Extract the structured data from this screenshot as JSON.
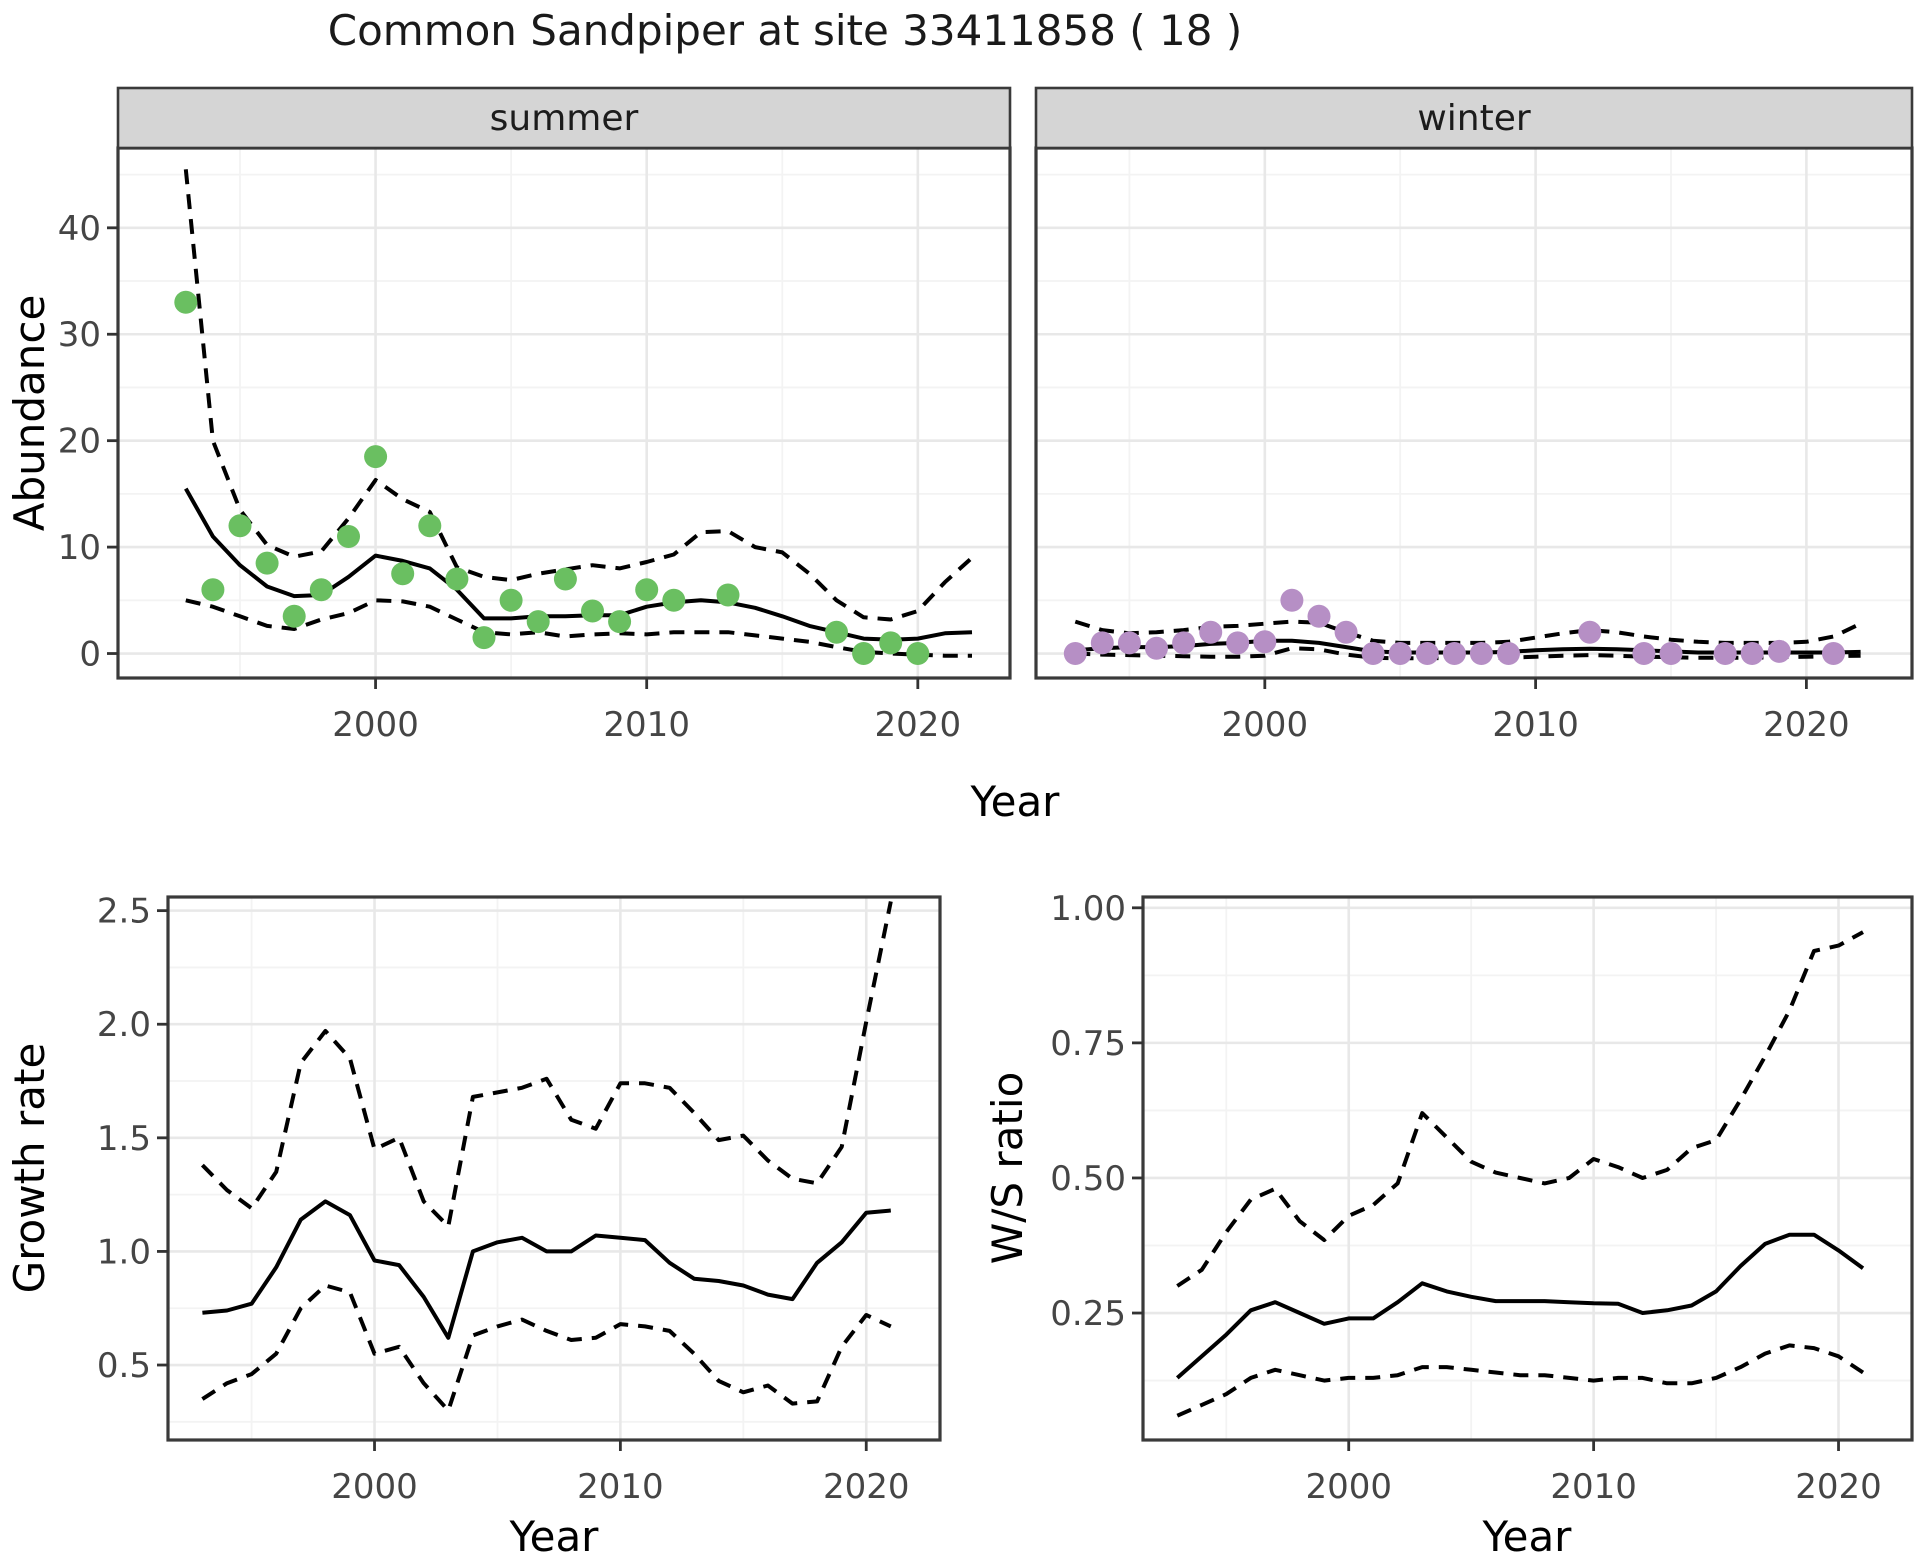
{
  "title": "Common Sandpiper at site 33411858 ( 18 )",
  "colors": {
    "background": "#ffffff",
    "panel_bg": "#ffffff",
    "grid_major": "#e8e8e8",
    "grid_minor": "#f3f3f3",
    "panel_border": "#3a3a3a",
    "strip_fill": "#d5d5d5",
    "tick_mark": "#333333",
    "line": "#000000",
    "summer_point": "#6abf61",
    "winter_point": "#b68fc5"
  },
  "chart_data": [
    {
      "id": "abundance-summer",
      "type": "line",
      "facet_label": "summer",
      "xlabel": "Year",
      "ylabel": "Abundance",
      "xlim": [
        1990.5,
        2023.4
      ],
      "ylim": [
        -2.3,
        47.5
      ],
      "x_ticks": {
        "values": [
          2000,
          2010,
          2020
        ],
        "labels": [
          "2000",
          "2010",
          "2020"
        ],
        "minor": [
          1995,
          2005,
          2015
        ]
      },
      "y_ticks": {
        "values": [
          0,
          10,
          20,
          30,
          40
        ],
        "labels": [
          "0",
          "10",
          "20",
          "30",
          "40"
        ],
        "minor": [
          5,
          15,
          25,
          35,
          45
        ]
      },
      "x": [
        1993,
        1994,
        1995,
        1996,
        1997,
        1998,
        1999,
        2000,
        2001,
        2002,
        2003,
        2004,
        2005,
        2006,
        2007,
        2008,
        2009,
        2010,
        2011,
        2012,
        2013,
        2014,
        2015,
        2016,
        2017,
        2018,
        2019,
        2020,
        2021,
        2022
      ],
      "series": [
        {
          "name": "mean",
          "style": "solid",
          "values": [
            15.5,
            11.0,
            8.3,
            6.3,
            5.4,
            5.5,
            7.2,
            9.2,
            8.7,
            8.0,
            6.0,
            3.3,
            3.3,
            3.5,
            3.5,
            3.6,
            3.6,
            4.4,
            4.8,
            5.0,
            4.8,
            4.3,
            3.5,
            2.6,
            2.0,
            1.4,
            1.3,
            1.4,
            1.9,
            2.0
          ]
        },
        {
          "name": "upper-ci",
          "style": "dashed",
          "values": [
            45.5,
            20.0,
            13.5,
            10.2,
            9.1,
            9.6,
            12.7,
            16.3,
            14.5,
            13.3,
            8.1,
            7.2,
            6.9,
            7.5,
            7.9,
            8.3,
            8.0,
            8.6,
            9.3,
            11.4,
            11.5,
            10.0,
            9.5,
            7.5,
            5.0,
            3.4,
            3.2,
            4.0,
            6.7,
            9.0
          ]
        },
        {
          "name": "lower-ci",
          "style": "dashed",
          "values": [
            5.0,
            4.4,
            3.5,
            2.6,
            2.3,
            3.2,
            3.8,
            5.0,
            4.9,
            4.4,
            3.2,
            2.0,
            1.8,
            2.0,
            1.6,
            1.8,
            1.9,
            1.8,
            2.0,
            2.0,
            2.0,
            1.7,
            1.4,
            1.1,
            0.6,
            0.15,
            0.0,
            -0.1,
            -0.2,
            -0.2
          ]
        }
      ],
      "points": {
        "color": "#6abf61",
        "data": [
          [
            1993,
            33
          ],
          [
            1994,
            6
          ],
          [
            1995,
            12
          ],
          [
            1996,
            8.5
          ],
          [
            1997,
            3.5
          ],
          [
            1998,
            6
          ],
          [
            1999,
            11
          ],
          [
            2000,
            18.5
          ],
          [
            2001,
            7.5
          ],
          [
            2002,
            12
          ],
          [
            2003,
            7
          ],
          [
            2004,
            1.5
          ],
          [
            2005,
            5
          ],
          [
            2006,
            3
          ],
          [
            2007,
            7
          ],
          [
            2008,
            4
          ],
          [
            2009,
            3
          ],
          [
            2010,
            6
          ],
          [
            2011,
            5
          ],
          [
            2013,
            5.5
          ],
          [
            2017,
            2
          ],
          [
            2018,
            0
          ],
          [
            2019,
            1
          ],
          [
            2020,
            0
          ]
        ]
      }
    },
    {
      "id": "abundance-winter",
      "type": "line",
      "facet_label": "winter",
      "xlabel": "Year",
      "ylabel": "Abundance",
      "xlim": [
        1991.55,
        2023.9
      ],
      "ylim": [
        -2.3,
        47.5
      ],
      "x_ticks": {
        "values": [
          2000,
          2010,
          2020
        ],
        "labels": [
          "2000",
          "2010",
          "2020"
        ],
        "minor": [
          1995,
          2005,
          2015
        ]
      },
      "y_ticks": {
        "values": [
          0,
          10,
          20,
          30,
          40
        ],
        "labels": [
          "0",
          "10",
          "20",
          "30",
          "40"
        ],
        "minor": [
          5,
          15,
          25,
          35,
          45
        ]
      },
      "x": [
        1993,
        1994,
        1995,
        1996,
        1997,
        1998,
        1999,
        2000,
        2001,
        2002,
        2003,
        2004,
        2005,
        2006,
        2007,
        2008,
        2009,
        2010,
        2011,
        2012,
        2013,
        2014,
        2015,
        2016,
        2017,
        2018,
        2019,
        2020,
        2021,
        2022
      ],
      "series": [
        {
          "name": "mean",
          "style": "solid",
          "values": [
            0.3,
            0.5,
            0.6,
            0.6,
            0.7,
            0.9,
            1.0,
            1.2,
            1.2,
            1.0,
            0.6,
            0.2,
            0.1,
            0.1,
            0.1,
            0.1,
            0.15,
            0.3,
            0.4,
            0.45,
            0.4,
            0.3,
            0.2,
            0.1,
            0.1,
            0.1,
            0.1,
            0.1,
            0.1,
            0.15
          ]
        },
        {
          "name": "upper-ci",
          "style": "dashed",
          "values": [
            3.0,
            2.2,
            1.9,
            2.0,
            2.2,
            2.5,
            2.6,
            2.8,
            3.0,
            2.9,
            2.0,
            1.2,
            1.0,
            1.0,
            1.0,
            1.0,
            1.1,
            1.5,
            1.9,
            2.2,
            2.0,
            1.6,
            1.3,
            1.1,
            1.0,
            1.0,
            1.0,
            1.1,
            1.6,
            2.8
          ]
        },
        {
          "name": "lower-ci",
          "style": "dashed",
          "values": [
            0.0,
            -0.1,
            -0.15,
            -0.2,
            -0.25,
            -0.3,
            -0.3,
            -0.2,
            0.5,
            0.4,
            -0.1,
            -0.4,
            -0.45,
            -0.45,
            -0.4,
            -0.4,
            -0.4,
            -0.3,
            -0.2,
            -0.15,
            -0.2,
            -0.3,
            -0.35,
            -0.4,
            -0.4,
            -0.4,
            -0.35,
            -0.3,
            -0.25,
            -0.2
          ]
        }
      ],
      "points": {
        "color": "#b68fc5",
        "data": [
          [
            1993,
            0
          ],
          [
            1994,
            1
          ],
          [
            1995,
            1
          ],
          [
            1996,
            0.5
          ],
          [
            1997,
            1
          ],
          [
            1998,
            2
          ],
          [
            1999,
            1
          ],
          [
            2000,
            1.1
          ],
          [
            2001,
            5
          ],
          [
            2002,
            3.5
          ],
          [
            2003,
            2
          ],
          [
            2004,
            0
          ],
          [
            2005,
            0
          ],
          [
            2006,
            0
          ],
          [
            2007,
            0
          ],
          [
            2008,
            0
          ],
          [
            2009,
            0
          ],
          [
            2012,
            2
          ],
          [
            2014,
            0
          ],
          [
            2015,
            0
          ],
          [
            2017,
            0
          ],
          [
            2018,
            0
          ],
          [
            2019,
            0.2
          ],
          [
            2021,
            0
          ]
        ]
      }
    },
    {
      "id": "growth-rate",
      "type": "line",
      "facet_label": "",
      "xlabel": "Year",
      "ylabel": "Growth rate",
      "xlim": [
        1991.6,
        2023.0
      ],
      "ylim": [
        0.17,
        2.56
      ],
      "x_ticks": {
        "values": [
          2000,
          2010,
          2020
        ],
        "labels": [
          "2000",
          "2010",
          "2020"
        ],
        "minor": [
          1995,
          2005,
          2015
        ]
      },
      "y_ticks": {
        "values": [
          0.5,
          1.0,
          1.5,
          2.0,
          2.5
        ],
        "labels": [
          "0.5",
          "1.0",
          "1.5",
          "2.0",
          "2.5"
        ],
        "minor": [
          0.25,
          0.75,
          1.25,
          1.75,
          2.25
        ]
      },
      "x": [
        1993,
        1994,
        1995,
        1996,
        1997,
        1998,
        1999,
        2000,
        2001,
        2002,
        2003,
        2004,
        2005,
        2006,
        2007,
        2008,
        2009,
        2010,
        2011,
        2012,
        2013,
        2014,
        2015,
        2016,
        2017,
        2018,
        2019,
        2020,
        2021
      ],
      "series": [
        {
          "name": "mean",
          "style": "solid",
          "values": [
            0.73,
            0.74,
            0.77,
            0.93,
            1.14,
            1.22,
            1.16,
            0.96,
            0.94,
            0.8,
            0.62,
            1.0,
            1.04,
            1.06,
            1.0,
            1.0,
            1.07,
            1.06,
            1.05,
            0.95,
            0.88,
            0.87,
            0.85,
            0.81,
            0.79,
            0.95,
            1.04,
            1.17,
            1.18
          ]
        },
        {
          "name": "upper-ci",
          "style": "dashed",
          "values": [
            1.38,
            1.27,
            1.19,
            1.35,
            1.83,
            1.97,
            1.85,
            1.45,
            1.5,
            1.22,
            1.11,
            1.68,
            1.7,
            1.72,
            1.76,
            1.58,
            1.54,
            1.74,
            1.74,
            1.72,
            1.61,
            1.49,
            1.51,
            1.4,
            1.32,
            1.3,
            1.46,
            2.01,
            2.54
          ]
        },
        {
          "name": "lower-ci",
          "style": "dashed",
          "values": [
            0.35,
            0.42,
            0.46,
            0.55,
            0.75,
            0.85,
            0.82,
            0.55,
            0.58,
            0.42,
            0.3,
            0.63,
            0.67,
            0.7,
            0.65,
            0.61,
            0.62,
            0.68,
            0.67,
            0.65,
            0.55,
            0.43,
            0.38,
            0.41,
            0.33,
            0.34,
            0.58,
            0.72,
            0.67
          ]
        }
      ],
      "points": null
    },
    {
      "id": "ws-ratio",
      "type": "line",
      "facet_label": "",
      "xlabel": "Year",
      "ylabel": "W/S ratio",
      "xlim": [
        1991.6,
        2023.0
      ],
      "ylim": [
        0.015,
        1.02
      ],
      "x_ticks": {
        "values": [
          2000,
          2010,
          2020
        ],
        "labels": [
          "2000",
          "2010",
          "2020"
        ],
        "minor": [
          1995,
          2005,
          2015
        ]
      },
      "y_ticks": {
        "values": [
          0.25,
          0.5,
          0.75,
          1.0
        ],
        "labels": [
          "0.25",
          "0.50",
          "0.75",
          "1.00"
        ],
        "minor": [
          0.125,
          0.375,
          0.625,
          0.875
        ]
      },
      "x": [
        1993,
        1994,
        1995,
        1996,
        1997,
        1998,
        1999,
        2000,
        2001,
        2002,
        2003,
        2004,
        2005,
        2006,
        2007,
        2008,
        2009,
        2010,
        2011,
        2012,
        2013,
        2014,
        2015,
        2016,
        2017,
        2018,
        2019,
        2020,
        2021
      ],
      "series": [
        {
          "name": "mean",
          "style": "solid",
          "values": [
            0.13,
            0.17,
            0.21,
            0.255,
            0.27,
            0.25,
            0.23,
            0.24,
            0.24,
            0.27,
            0.305,
            0.29,
            0.28,
            0.272,
            0.272,
            0.272,
            0.27,
            0.268,
            0.267,
            0.25,
            0.255,
            0.264,
            0.29,
            0.337,
            0.378,
            0.395,
            0.395,
            0.366,
            0.333
          ]
        },
        {
          "name": "upper-ci",
          "style": "dashed",
          "values": [
            0.3,
            0.33,
            0.4,
            0.46,
            0.48,
            0.42,
            0.385,
            0.43,
            0.45,
            0.49,
            0.62,
            0.575,
            0.53,
            0.51,
            0.5,
            0.49,
            0.5,
            0.535,
            0.52,
            0.5,
            0.515,
            0.555,
            0.57,
            0.645,
            0.725,
            0.81,
            0.92,
            0.93,
            0.955
          ]
        },
        {
          "name": "lower-ci",
          "style": "dashed",
          "values": [
            0.06,
            0.08,
            0.1,
            0.13,
            0.145,
            0.135,
            0.125,
            0.13,
            0.13,
            0.135,
            0.15,
            0.15,
            0.145,
            0.14,
            0.135,
            0.135,
            0.13,
            0.125,
            0.13,
            0.13,
            0.12,
            0.12,
            0.13,
            0.15,
            0.175,
            0.19,
            0.185,
            0.17,
            0.14
          ]
        }
      ],
      "points": null
    }
  ]
}
